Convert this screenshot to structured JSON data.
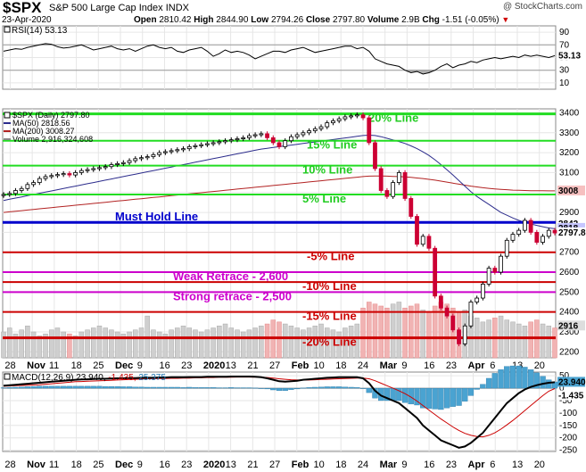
{
  "header": {
    "symbol": "$SPX",
    "name": "S&P 500 Large Cap Index",
    "exchange": "INDX",
    "date": "23-Apr-2020",
    "open_label": "Open",
    "open": "2810.42",
    "high_label": "High",
    "high": "2844.90",
    "low_label": "Low",
    "low": "2794.26",
    "close_label": "Close",
    "close": "2797.80",
    "volume_label": "Volume",
    "volume": "2.9B",
    "chg_label": "Chg",
    "chg": "-1.51 (-0.05%)",
    "credit": "@ StockCharts.com"
  },
  "chart_data": [
    {
      "type": "line",
      "panel": "rsi",
      "legend": "RSI(14) 53.13",
      "ylim": [
        0,
        100
      ],
      "yticks": [
        10,
        30,
        50,
        70,
        90
      ],
      "levels": [
        30,
        70
      ],
      "last_label": "53.13",
      "values": [
        60,
        62,
        64,
        63,
        66,
        68,
        70,
        72,
        71,
        67,
        65,
        66,
        68,
        70,
        66,
        62,
        64,
        66,
        68,
        64,
        62,
        64,
        60,
        64,
        68,
        70,
        66,
        64,
        66,
        60,
        58,
        62,
        64,
        66,
        60,
        52,
        56,
        62,
        58,
        60,
        58,
        54,
        48,
        52,
        56,
        60,
        60,
        58,
        62,
        64,
        66,
        62,
        58,
        60,
        62,
        64,
        66,
        68,
        68,
        64,
        66,
        60,
        48,
        44,
        40,
        38,
        36,
        30,
        26,
        28,
        24,
        26,
        30,
        36,
        40,
        34,
        38,
        40,
        44,
        42,
        46,
        48,
        50,
        48,
        50,
        52,
        50,
        54,
        52,
        54,
        52,
        50,
        53
      ]
    },
    {
      "type": "candlestick",
      "panel": "price",
      "legend": [
        "$SPX (Daily) 2797.80",
        "MA(50) 2818.56",
        "MA(200) 3008.27",
        "Volume 2,916,324,608"
      ],
      "legend_colors": [
        "#000000",
        "#2c2c8c",
        "#b22222",
        "#888888"
      ],
      "ylim": [
        2170,
        3420
      ],
      "yticks": [
        2200,
        2300,
        2400,
        2500,
        2600,
        2700,
        2800,
        2900,
        3000,
        3100,
        3200,
        3300,
        3400
      ],
      "x_tick_labels": [
        "28",
        "Nov",
        "11",
        "18",
        "25",
        "Dec",
        "9",
        "16",
        "23",
        "2020",
        "13",
        "21",
        "27",
        "Feb",
        "10",
        "18",
        "24",
        "Mar",
        "9",
        "16",
        "23",
        "Apr",
        "6",
        "13",
        "20"
      ],
      "close": [
        2990,
        2995,
        3010,
        3020,
        3040,
        3050,
        3070,
        3080,
        3085,
        3090,
        3095,
        3088,
        3100,
        3110,
        3115,
        3120,
        3125,
        3130,
        3140,
        3145,
        3150,
        3160,
        3170,
        3175,
        3180,
        3190,
        3200,
        3205,
        3210,
        3215,
        3220,
        3230,
        3235,
        3240,
        3245,
        3250,
        3255,
        3260,
        3265,
        3270,
        3275,
        3285,
        3290,
        3295,
        3275,
        3250,
        3230,
        3260,
        3280,
        3290,
        3300,
        3310,
        3320,
        3330,
        3350,
        3360,
        3370,
        3380,
        3385,
        3390,
        3375,
        3250,
        3120,
        3010,
        2980,
        3050,
        3100,
        2970,
        2880,
        2740,
        2780,
        2720,
        2480,
        2420,
        2380,
        2310,
        2240,
        2330,
        2450,
        2470,
        2540,
        2620,
        2600,
        2680,
        2760,
        2790,
        2810,
        2860,
        2800,
        2750,
        2780,
        2810,
        2797
      ],
      "ma50": [
        2960,
        2966,
        2972,
        2978,
        2984,
        2990,
        2996,
        3002,
        3008,
        3014,
        3020,
        3026,
        3032,
        3038,
        3044,
        3050,
        3056,
        3062,
        3068,
        3074,
        3080,
        3086,
        3092,
        3098,
        3104,
        3110,
        3116,
        3122,
        3128,
        3134,
        3140,
        3146,
        3152,
        3158,
        3164,
        3170,
        3176,
        3182,
        3188,
        3194,
        3200,
        3206,
        3212,
        3218,
        3222,
        3226,
        3230,
        3234,
        3238,
        3242,
        3246,
        3250,
        3254,
        3258,
        3262,
        3266,
        3270,
        3274,
        3278,
        3282,
        3286,
        3288,
        3286,
        3280,
        3272,
        3264,
        3256,
        3246,
        3234,
        3220,
        3204,
        3186,
        3164,
        3140,
        3114,
        3088,
        3060,
        3032,
        3004,
        2980,
        2960,
        2940,
        2920,
        2900,
        2886,
        2872,
        2860,
        2850,
        2842,
        2835,
        2828,
        2822,
        2818.56
      ],
      "ma200": [
        2900,
        2903,
        2906,
        2909,
        2912,
        2915,
        2918,
        2921,
        2924,
        2927,
        2930,
        2933,
        2936,
        2939,
        2942,
        2945,
        2948,
        2951,
        2954,
        2957,
        2960,
        2963,
        2966,
        2969,
        2972,
        2975,
        2978,
        2981,
        2984,
        2987,
        2990,
        2993,
        2996,
        2999,
        3002,
        3005,
        3008,
        3011,
        3014,
        3017,
        3020,
        3023,
        3026,
        3029,
        3032,
        3035,
        3038,
        3041,
        3044,
        3047,
        3050,
        3053,
        3056,
        3059,
        3062,
        3065,
        3068,
        3071,
        3074,
        3077,
        3080,
        3082,
        3083,
        3083,
        3082,
        3081,
        3080,
        3078,
        3076,
        3073,
        3070,
        3066,
        3062,
        3057,
        3052,
        3047,
        3042,
        3037,
        3032,
        3028,
        3024,
        3021,
        3018,
        3016,
        3014,
        3012,
        3011,
        3010,
        3009,
        3009,
        3008.5,
        3008.3,
        3008.27
      ],
      "volume": [
        2300,
        2320,
        2290,
        2310,
        2330,
        2300,
        2280,
        2290,
        2310,
        2320,
        2300,
        2290,
        2280,
        2300,
        2310,
        2320,
        2330,
        2320,
        2310,
        2300,
        2290,
        2300,
        2310,
        2320,
        2380,
        2310,
        2300,
        2290,
        2310,
        2320,
        2330,
        2320,
        2310,
        2300,
        2310,
        2320,
        2330,
        2340,
        2320,
        2310,
        2300,
        2310,
        2320,
        2330,
        2340,
        2360,
        2350,
        2340,
        2330,
        2320,
        2310,
        2320,
        2330,
        2340,
        2320,
        2310,
        2300,
        2320,
        2330,
        2340,
        2420,
        2450,
        2440,
        2430,
        2420,
        2440,
        2450,
        2420,
        2430,
        2440,
        2410,
        2400,
        2430,
        2450,
        2440,
        2420,
        2400,
        2410,
        2380,
        2370,
        2350,
        2360,
        2370,
        2380,
        2360,
        2350,
        2340,
        2330,
        2350,
        2360,
        2340,
        2330,
        2320
      ],
      "last_labels": [
        "2842",
        "2818",
        "2797.8",
        "3008",
        "2916"
      ],
      "levels": [
        {
          "label": "20% Line",
          "value": 3395,
          "color": "#22dd22",
          "text_color": "#22cc22"
        },
        {
          "label": "15% Line",
          "value": 3260,
          "color": "#22dd22",
          "text_color": "#22cc22"
        },
        {
          "label": "10% Line",
          "value": 3135,
          "color": "#22dd22",
          "text_color": "#22cc22"
        },
        {
          "label": "5% Line",
          "value": 2990,
          "color": "#22dd22",
          "text_color": "#22cc22"
        },
        {
          "label": "Must Hold Line",
          "value": 2850,
          "color": "#0000cc",
          "text_color": "#0000cc"
        },
        {
          "label": "-5% Line",
          "value": 2700,
          "color": "#cc0000",
          "text_color": "#cc0000"
        },
        {
          "label": "Weak Retrace - 2,600",
          "value": 2600,
          "color": "#cc00cc",
          "text_color": "#cc00cc"
        },
        {
          "label": "-10% Line",
          "value": 2550,
          "color": "#cc0000",
          "text_color": "#cc0000"
        },
        {
          "label": "Strong retrace - 2,500",
          "value": 2500,
          "color": "#cc00cc",
          "text_color": "#cc00cc"
        },
        {
          "label": "-15% Line",
          "value": 2400,
          "color": "#cc0000",
          "text_color": "#cc0000"
        },
        {
          "label": "-20% Line",
          "value": 2270,
          "color": "#cc0000",
          "text_color": "#cc0000"
        }
      ]
    },
    {
      "type": "line",
      "panel": "macd",
      "legend": "MACD(12,26,9) 23.940, -1.435, 25.375",
      "legend_values": [
        "23.940",
        "-1.435",
        "25.375"
      ],
      "legend_colors": [
        "#000000",
        "#cc0000",
        "#1f77b4"
      ],
      "ylim": [
        -255,
        65
      ],
      "yticks": [
        50,
        0,
        -50,
        -100,
        -150,
        -200,
        -250
      ],
      "last_labels": [
        "23.940",
        "-1.435"
      ],
      "macd": [
        10,
        12,
        14,
        16,
        18,
        20,
        22,
        24,
        26,
        28,
        30,
        32,
        34,
        35,
        36,
        37,
        38,
        38,
        39,
        40,
        40,
        41,
        41,
        42,
        42,
        42,
        43,
        43,
        44,
        44,
        44,
        45,
        45,
        45,
        46,
        46,
        46,
        46,
        47,
        47,
        47,
        47,
        46,
        44,
        40,
        34,
        28,
        26,
        28,
        30,
        34,
        36,
        38,
        40,
        42,
        43,
        44,
        44,
        44,
        44,
        40,
        20,
        -10,
        -30,
        -40,
        -50,
        -60,
        -80,
        -100,
        -120,
        -150,
        -170,
        -190,
        -210,
        -220,
        -230,
        -240,
        -235,
        -220,
        -200,
        -180,
        -150,
        -120,
        -90,
        -60,
        -40,
        -20,
        -5,
        5,
        12,
        18,
        22,
        23.94
      ],
      "signal": [
        8,
        9,
        10,
        11,
        12,
        13,
        14,
        16,
        18,
        20,
        22,
        24,
        26,
        27,
        28,
        29,
        30,
        31,
        32,
        33,
        34,
        35,
        36,
        37,
        38,
        38,
        39,
        39,
        40,
        40,
        41,
        41,
        42,
        42,
        43,
        43,
        44,
        44,
        44,
        45,
        45,
        45,
        45,
        44,
        43,
        41,
        38,
        36,
        34,
        33,
        33,
        33,
        34,
        35,
        36,
        37,
        38,
        39,
        40,
        41,
        41,
        38,
        30,
        20,
        10,
        0,
        -10,
        -22,
        -36,
        -52,
        -70,
        -88,
        -106,
        -124,
        -140,
        -156,
        -170,
        -182,
        -190,
        -195,
        -196,
        -190,
        -180,
        -165,
        -148,
        -130,
        -110,
        -90,
        -70,
        -50,
        -30,
        -12,
        -1.435
      ],
      "histogram": [
        2,
        3,
        4,
        5,
        6,
        7,
        8,
        8,
        8,
        8,
        8,
        8,
        8,
        8,
        8,
        8,
        8,
        7,
        7,
        7,
        6,
        6,
        5,
        5,
        4,
        4,
        4,
        4,
        4,
        4,
        3,
        4,
        3,
        3,
        3,
        3,
        2,
        2,
        3,
        2,
        2,
        2,
        1,
        0,
        -3,
        -7,
        -10,
        -10,
        -6,
        -3,
        1,
        3,
        4,
        5,
        6,
        6,
        6,
        5,
        4,
        3,
        -1,
        -18,
        -40,
        -50,
        -50,
        -50,
        -50,
        -58,
        -64,
        -68,
        -80,
        -82,
        -84,
        -86,
        -80,
        -74,
        -70,
        -53,
        -30,
        -5,
        16,
        40,
        60,
        75,
        88,
        90,
        90,
        85,
        75,
        62,
        48,
        34,
        25.375
      ]
    }
  ]
}
